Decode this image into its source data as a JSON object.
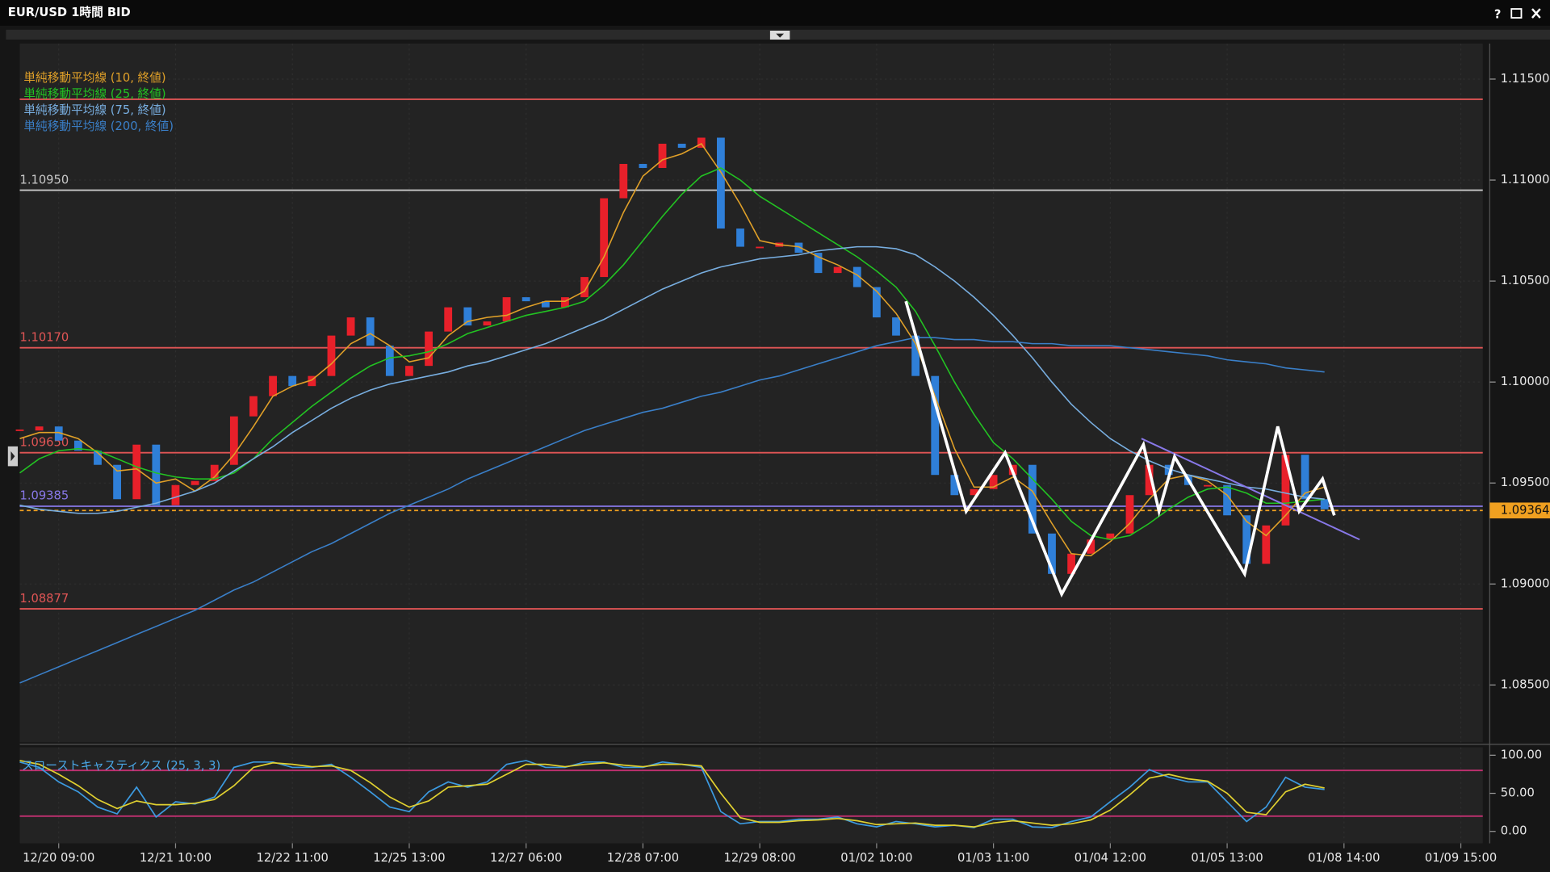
{
  "window": {
    "title": "EUR/USD 1時間 BID",
    "help": "?"
  },
  "chart_data": [
    {
      "type": "candlestick",
      "categories": [
        null,
        null,
        "12/20 09:00",
        null,
        null,
        null,
        null,
        null,
        "12/21 10:00",
        null,
        null,
        null,
        null,
        null,
        "12/22 11:00",
        null,
        null,
        null,
        null,
        null,
        "12/25 13:00",
        null,
        null,
        null,
        null,
        null,
        "12/27 06:00",
        null,
        null,
        null,
        null,
        null,
        "12/28 07:00",
        null,
        null,
        null,
        null,
        null,
        "12/29 08:00",
        null,
        null,
        null,
        null,
        null,
        "01/02 10:00",
        null,
        null,
        null,
        null,
        null,
        "01/03 11:00",
        null,
        null,
        null,
        null,
        null,
        "01/04 12:00",
        null,
        null,
        null,
        null,
        null,
        "01/05 13:00",
        null,
        null,
        null,
        null,
        null,
        "01/08 14:00",
        null,
        null,
        null,
        null,
        null,
        "01/09 15:00",
        null
      ],
      "close": {
        "up_color": "#e8202a",
        "down_color": "#2f7fd8",
        "values": [
          1.0976,
          1.0978,
          1.0971,
          1.0966,
          1.0959,
          1.0942,
          1.0969,
          1.0939,
          1.0949,
          1.0951,
          1.0959,
          1.0983,
          1.0993,
          1.1003,
          1.0998,
          1.1003,
          1.1023,
          1.1032,
          1.1018,
          1.1003,
          1.1008,
          1.1025,
          1.1037,
          1.1028,
          1.103,
          1.1042,
          1.104,
          1.1037,
          1.1042,
          1.1052,
          1.1091,
          1.1108,
          1.1106,
          1.1118,
          1.1116,
          1.1121,
          1.1076,
          1.1067,
          1.1067,
          1.1069,
          1.1064,
          1.1054,
          1.1057,
          1.1047,
          1.1032,
          1.1023,
          1.1003,
          1.0954,
          1.0944,
          1.0947,
          1.0954,
          1.0959,
          1.0925,
          1.0905,
          1.0915,
          1.0922,
          1.0925,
          1.0944,
          1.0959,
          1.0954,
          1.0949,
          1.0949,
          1.0934,
          1.091,
          1.0929,
          1.0964,
          1.0942,
          1.0937,
          null,
          null,
          null,
          null,
          null,
          null,
          null,
          null
        ]
      },
      "series": [
        {
          "name": "単純移動平均線 (10, 終値)",
          "color": "#e0a028",
          "values": [
            1.0972,
            1.0975,
            1.0975,
            1.0972,
            1.0965,
            1.0956,
            1.0957,
            1.095,
            1.0952,
            1.0946,
            1.0953,
            1.0964,
            1.0978,
            1.0993,
            1.0998,
            1.1001,
            1.1009,
            1.1019,
            1.1024,
            1.1018,
            1.101,
            1.1012,
            1.1023,
            1.103,
            1.1032,
            1.1033,
            1.1037,
            1.104,
            1.104,
            1.1045,
            1.1062,
            1.1084,
            1.1102,
            1.111,
            1.1113,
            1.1118,
            1.1104,
            1.1088,
            1.107,
            1.1068,
            1.1067,
            1.1062,
            1.1058,
            1.1053,
            1.1045,
            1.1034,
            1.1019,
            1.0993,
            1.0967,
            1.0948,
            1.0948,
            1.0953,
            1.0946,
            1.093,
            1.0915,
            1.0914,
            1.0921,
            1.093,
            1.0942,
            1.0952,
            1.0954,
            1.0951,
            1.0944,
            1.0931,
            1.0924,
            1.0934,
            1.0945,
            1.0948,
            null,
            null,
            null,
            null,
            null,
            null,
            null,
            null
          ]
        },
        {
          "name": "単純移動平均線 (25, 終値)",
          "color": "#22c322",
          "values": [
            1.0955,
            1.0962,
            1.0966,
            1.0967,
            1.0966,
            1.0962,
            1.0958,
            1.0955,
            1.0953,
            1.0952,
            1.0952,
            1.0955,
            1.0962,
            1.0972,
            1.098,
            1.0988,
            1.0995,
            1.1002,
            1.1008,
            1.1012,
            1.1013,
            1.1015,
            1.1019,
            1.1024,
            1.1027,
            1.103,
            1.1033,
            1.1035,
            1.1037,
            1.104,
            1.1048,
            1.1058,
            1.107,
            1.1082,
            1.1093,
            1.1102,
            1.1106,
            1.11,
            1.1092,
            1.1086,
            1.108,
            1.1074,
            1.1068,
            1.1062,
            1.1055,
            1.1047,
            1.1035,
            1.1018,
            1.1,
            1.0984,
            1.097,
            1.0962,
            1.0952,
            1.0942,
            1.0931,
            1.0924,
            1.0922,
            1.0924,
            1.093,
            1.0937,
            1.0943,
            1.0947,
            1.0948,
            1.0945,
            1.094,
            1.094,
            1.0941,
            1.0942,
            null,
            null,
            null,
            null,
            null,
            null,
            null,
            null
          ]
        },
        {
          "name": "単純移動平均線 (75, 終値)",
          "color": "#78aee0",
          "values": [
            1.0939,
            1.0937,
            1.0936,
            1.0935,
            1.0935,
            1.0936,
            1.0938,
            1.094,
            1.0943,
            1.0946,
            1.095,
            1.0956,
            1.0962,
            1.0968,
            1.0975,
            1.0981,
            1.0987,
            1.0992,
            1.0996,
            1.0999,
            1.1001,
            1.1003,
            1.1005,
            1.1008,
            1.101,
            1.1013,
            1.1016,
            1.1019,
            1.1023,
            1.1027,
            1.1031,
            1.1036,
            1.1041,
            1.1046,
            1.105,
            1.1054,
            1.1057,
            1.1059,
            1.1061,
            1.1062,
            1.1063,
            1.1065,
            1.1066,
            1.1067,
            1.1067,
            1.1066,
            1.1063,
            1.1057,
            1.105,
            1.1042,
            1.1033,
            1.1023,
            1.1012,
            1.1,
            1.0989,
            1.098,
            1.0972,
            1.0966,
            1.0961,
            1.0957,
            1.0954,
            1.0952,
            1.095,
            1.0948,
            1.0947,
            1.0945,
            1.0943,
            1.0942,
            null,
            null,
            null,
            null,
            null,
            null,
            null,
            null
          ]
        },
        {
          "name": "単純移動平均線 (200, 終値)",
          "color": "#3a7fc8",
          "values": [
            1.0851,
            1.0855,
            1.0859,
            1.0863,
            1.0867,
            1.0871,
            1.0875,
            1.0879,
            1.0883,
            1.0887,
            1.0892,
            1.0897,
            1.0901,
            1.0906,
            1.0911,
            1.0916,
            1.092,
            1.0925,
            1.093,
            1.0935,
            1.0939,
            1.0943,
            1.0947,
            1.0952,
            1.0956,
            1.096,
            1.0964,
            1.0968,
            1.0972,
            1.0976,
            1.0979,
            1.0982,
            1.0985,
            1.0987,
            1.099,
            1.0993,
            1.0995,
            1.0998,
            1.1001,
            1.1003,
            1.1006,
            1.1009,
            1.1012,
            1.1015,
            1.1018,
            1.102,
            1.1022,
            1.1022,
            1.1021,
            1.1021,
            1.102,
            1.102,
            1.1019,
            1.1019,
            1.1018,
            1.1018,
            1.1018,
            1.1017,
            1.1016,
            1.1015,
            1.1014,
            1.1013,
            1.1011,
            1.101,
            1.1009,
            1.1007,
            1.1006,
            1.1005,
            null,
            null,
            null,
            null,
            null,
            null,
            null,
            null
          ]
        }
      ],
      "hlines": [
        {
          "value": 1.114,
          "color": "#e05555"
        },
        {
          "value": 1.1095,
          "label": "1.10950",
          "color": "#c8c8c8"
        },
        {
          "value": 1.1017,
          "label": "1.10170",
          "color": "#e05555"
        },
        {
          "value": 1.0965,
          "label": "1.09650",
          "color": "#e05555"
        },
        {
          "value": 1.09385,
          "label": "1.09385",
          "color": "#8878e8"
        },
        {
          "value": 1.08877,
          "label": "1.08877",
          "color": "#e05555"
        },
        {
          "value": 1.09364,
          "label": "1.09364",
          "color": "#f0a020",
          "dashed": true,
          "tag": true
        }
      ],
      "zigzag": {
        "color": "#ffffff",
        "x": [
          45.5,
          48.6,
          50.6,
          53.5,
          57.7,
          58.5,
          59.3,
          62.9,
          64.6,
          65.7,
          66.9,
          67.5
        ],
        "y": [
          1.104,
          1.0936,
          1.0965,
          1.0895,
          1.0969,
          1.0936,
          1.0963,
          1.0905,
          1.0978,
          1.0936,
          1.0952,
          1.0934
        ]
      },
      "trendline": {
        "color": "#8878e8",
        "x": [
          57.6,
          68.8
        ],
        "y": [
          1.0972,
          1.0922
        ]
      },
      "ylim": [
        1.08216,
        1.11676
      ],
      "yticks": [
        {
          "value": 1.115,
          "label": "1.11500"
        },
        {
          "value": 1.11,
          "label": "1.11000"
        },
        {
          "value": 1.105,
          "label": "1.10500"
        },
        {
          "value": 1.1,
          "label": "1.10000"
        },
        {
          "value": 1.095,
          "label": "1.09500"
        },
        {
          "value": 1.09,
          "label": "1.09000"
        },
        {
          "value": 1.085,
          "label": "1.08500"
        }
      ],
      "grid": true,
      "legend": "top-left"
    },
    {
      "type": "line",
      "title": "スローストキャスティクス (25, 3, 3)",
      "series": [
        {
          "color": "#3c9ae0",
          "values": [
            91,
            84,
            65,
            52,
            32,
            23,
            58,
            19,
            39,
            36,
            45,
            84,
            91,
            91,
            84,
            84,
            88,
            71,
            52,
            32,
            26,
            52,
            65,
            58,
            65,
            88,
            93,
            84,
            84,
            91,
            91,
            84,
            84,
            91,
            88,
            84,
            26,
            10,
            13,
            13,
            16,
            16,
            19,
            10,
            6,
            13,
            10,
            6,
            8,
            5,
            16,
            16,
            6,
            5,
            13,
            19,
            39,
            58,
            81,
            71,
            65,
            65,
            39,
            13,
            32,
            71,
            58,
            55,
            null,
            null,
            null,
            null,
            null,
            null,
            null,
            null
          ]
        },
        {
          "color": "#e0d030",
          "values": [
            93,
            88,
            75,
            60,
            42,
            30,
            40,
            35,
            35,
            37,
            42,
            60,
            84,
            90,
            88,
            85,
            86,
            80,
            64,
            45,
            32,
            40,
            58,
            60,
            62,
            75,
            88,
            88,
            85,
            88,
            90,
            87,
            85,
            88,
            88,
            86,
            50,
            18,
            12,
            12,
            14,
            15,
            17,
            14,
            9,
            10,
            11,
            8,
            8,
            6,
            11,
            14,
            11,
            8,
            10,
            15,
            28,
            48,
            70,
            75,
            69,
            66,
            50,
            25,
            22,
            52,
            62,
            57,
            null,
            null,
            null,
            null,
            null,
            null,
            null,
            null
          ]
        }
      ],
      "hlines": [
        {
          "value": 80,
          "color": "#c03070"
        },
        {
          "value": 20,
          "color": "#c03070"
        }
      ],
      "ylim": [
        -15.6,
        110.4
      ],
      "yticks": [
        {
          "value": 100,
          "label": "100.00"
        },
        {
          "value": 50,
          "label": "50.00"
        },
        {
          "value": 0,
          "label": "0.00"
        }
      ]
    }
  ]
}
